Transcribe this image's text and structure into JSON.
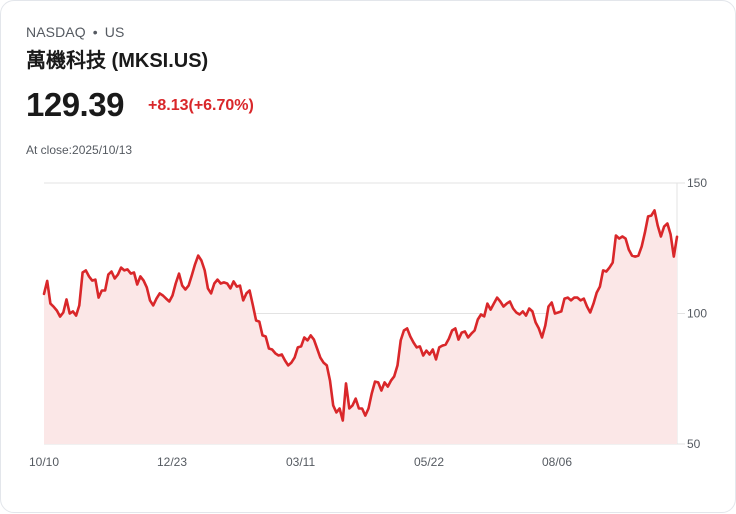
{
  "header": {
    "exchange": "NASDAQ",
    "separator": "•",
    "market": "US",
    "title": "萬機科技 (MKSI.US)",
    "price": "129.39",
    "change": "+8.13(+6.70%)",
    "close_label": "At close:2025/10/13"
  },
  "colors": {
    "line": "#d9272a",
    "fill": "#fbe7e7",
    "grid": "#e3e3e3",
    "text_muted": "#555a61"
  },
  "chart_data": {
    "type": "area",
    "title": "萬機科技 (MKSI.US)",
    "xlabel": "",
    "ylabel": "",
    "ylim": [
      50,
      150
    ],
    "yticks": [
      150,
      100,
      50
    ],
    "x_tick_labels": [
      "10/10",
      "12/23",
      "03/11",
      "05/22",
      "08/06"
    ],
    "x_range": [
      "2024/10/10",
      "2025/10/13"
    ],
    "grid": true,
    "legend": false,
    "series": [
      {
        "name": "MKSI.US close",
        "values": [
          107.5,
          112.5,
          103.8,
          102.6,
          101.1,
          98.8,
          100.4,
          105.4,
          100.0,
          100.8,
          99.2,
          103.1,
          115.7,
          116.5,
          114.2,
          112.6,
          113.0,
          106.1,
          108.8,
          108.8,
          114.9,
          116.1,
          113.4,
          114.9,
          117.6,
          116.5,
          116.9,
          115.3,
          115.7,
          111.1,
          114.2,
          112.6,
          110.0,
          105.0,
          103.1,
          105.7,
          107.7,
          106.9,
          105.7,
          104.6,
          106.9,
          111.5,
          115.3,
          110.7,
          109.2,
          110.7,
          114.6,
          118.8,
          122.2,
          120.3,
          116.5,
          109.6,
          107.7,
          111.5,
          113.0,
          111.5,
          111.9,
          111.5,
          109.6,
          112.3,
          110.3,
          110.7,
          105.0,
          107.7,
          108.8,
          103.1,
          97.3,
          96.9,
          91.6,
          91.2,
          86.6,
          86.2,
          84.7,
          83.9,
          84.3,
          82.0,
          80.1,
          81.2,
          83.1,
          87.0,
          87.4,
          90.8,
          89.7,
          91.6,
          90.0,
          86.6,
          83.1,
          81.2,
          80.1,
          74.3,
          64.8,
          62.1,
          63.6,
          59.0,
          73.2,
          63.6,
          64.8,
          67.4,
          63.6,
          63.6,
          60.9,
          63.6,
          69.3,
          73.9,
          73.6,
          70.5,
          73.6,
          72.0,
          74.3,
          75.9,
          80.1,
          89.7,
          93.5,
          94.3,
          91.2,
          88.9,
          87.0,
          87.4,
          83.9,
          85.8,
          84.3,
          86.2,
          82.4,
          87.0,
          87.7,
          88.1,
          90.4,
          93.5,
          94.3,
          90.0,
          92.7,
          93.1,
          90.8,
          92.3,
          93.5,
          97.7,
          99.6,
          98.9,
          103.8,
          101.5,
          103.8,
          106.1,
          104.6,
          102.7,
          103.8,
          104.6,
          101.9,
          100.4,
          99.6,
          100.8,
          99.2,
          101.9,
          100.8,
          96.6,
          94.3,
          90.8,
          95.4,
          102.7,
          104.2,
          100.0,
          100.4,
          100.8,
          105.7,
          106.1,
          105.0,
          106.1,
          106.1,
          105.0,
          105.7,
          102.7,
          100.4,
          103.8,
          108.0,
          110.3,
          116.5,
          116.1,
          117.6,
          119.5,
          129.9,
          128.7,
          129.5,
          128.7,
          124.5,
          122.2,
          121.8,
          122.2,
          125.7,
          131.0,
          137.2,
          137.5,
          139.5,
          133.7,
          129.5,
          133.3,
          134.5,
          130.3,
          121.8,
          129.4
        ]
      }
    ]
  }
}
